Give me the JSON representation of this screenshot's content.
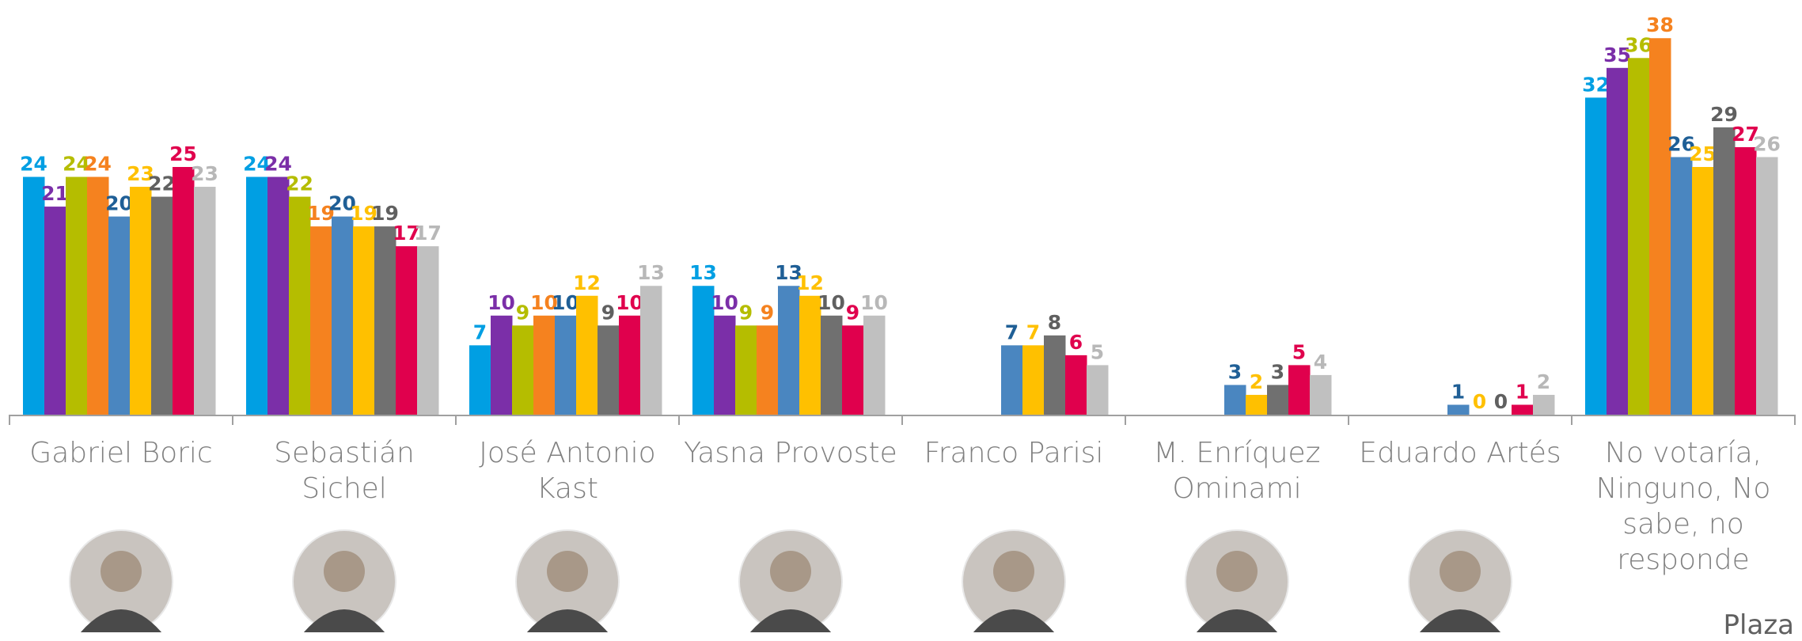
{
  "chart_data": {
    "type": "bar",
    "categories": [
      "Gabriel Boric",
      "Sebastián Sichel",
      "José Antonio Kast",
      "Yasna Provoste",
      "Franco Parisi",
      "M. Enríquez Ominami",
      "Eduardo Artés",
      "No votaría, Ninguno, No sabe, no responde"
    ],
    "series": [
      {
        "color": "#009fe3",
        "label_color": "#009fe3",
        "values": [
          24,
          24,
          7,
          13,
          null,
          null,
          null,
          32
        ]
      },
      {
        "color": "#7b2fa8",
        "label_color": "#7b2fa8",
        "values": [
          21,
          24,
          10,
          10,
          null,
          null,
          null,
          35
        ]
      },
      {
        "color": "#b5bd00",
        "label_color": "#b5bd00",
        "values": [
          24,
          22,
          9,
          9,
          null,
          null,
          null,
          36
        ]
      },
      {
        "color": "#f5821f",
        "label_color": "#f5821f",
        "values": [
          24,
          19,
          10,
          9,
          null,
          null,
          null,
          38
        ]
      },
      {
        "color": "#4a86c0",
        "label_color": "#1f5f96",
        "values": [
          20,
          20,
          10,
          13,
          7,
          3,
          1,
          26
        ]
      },
      {
        "color": "#ffc000",
        "label_color": "#ffc000",
        "values": [
          23,
          19,
          12,
          12,
          7,
          2,
          0,
          25
        ]
      },
      {
        "color": "#707070",
        "label_color": "#606060",
        "values": [
          22,
          19,
          9,
          10,
          8,
          3,
          0,
          29
        ]
      },
      {
        "color": "#e0004d",
        "label_color": "#e0004d",
        "values": [
          25,
          17,
          10,
          9,
          6,
          5,
          1,
          27
        ]
      },
      {
        "color": "#c0c0c0",
        "label_color": "#b8b8b8",
        "values": [
          23,
          17,
          13,
          10,
          5,
          4,
          2,
          26
        ]
      }
    ],
    "source": "Plaza"
  }
}
